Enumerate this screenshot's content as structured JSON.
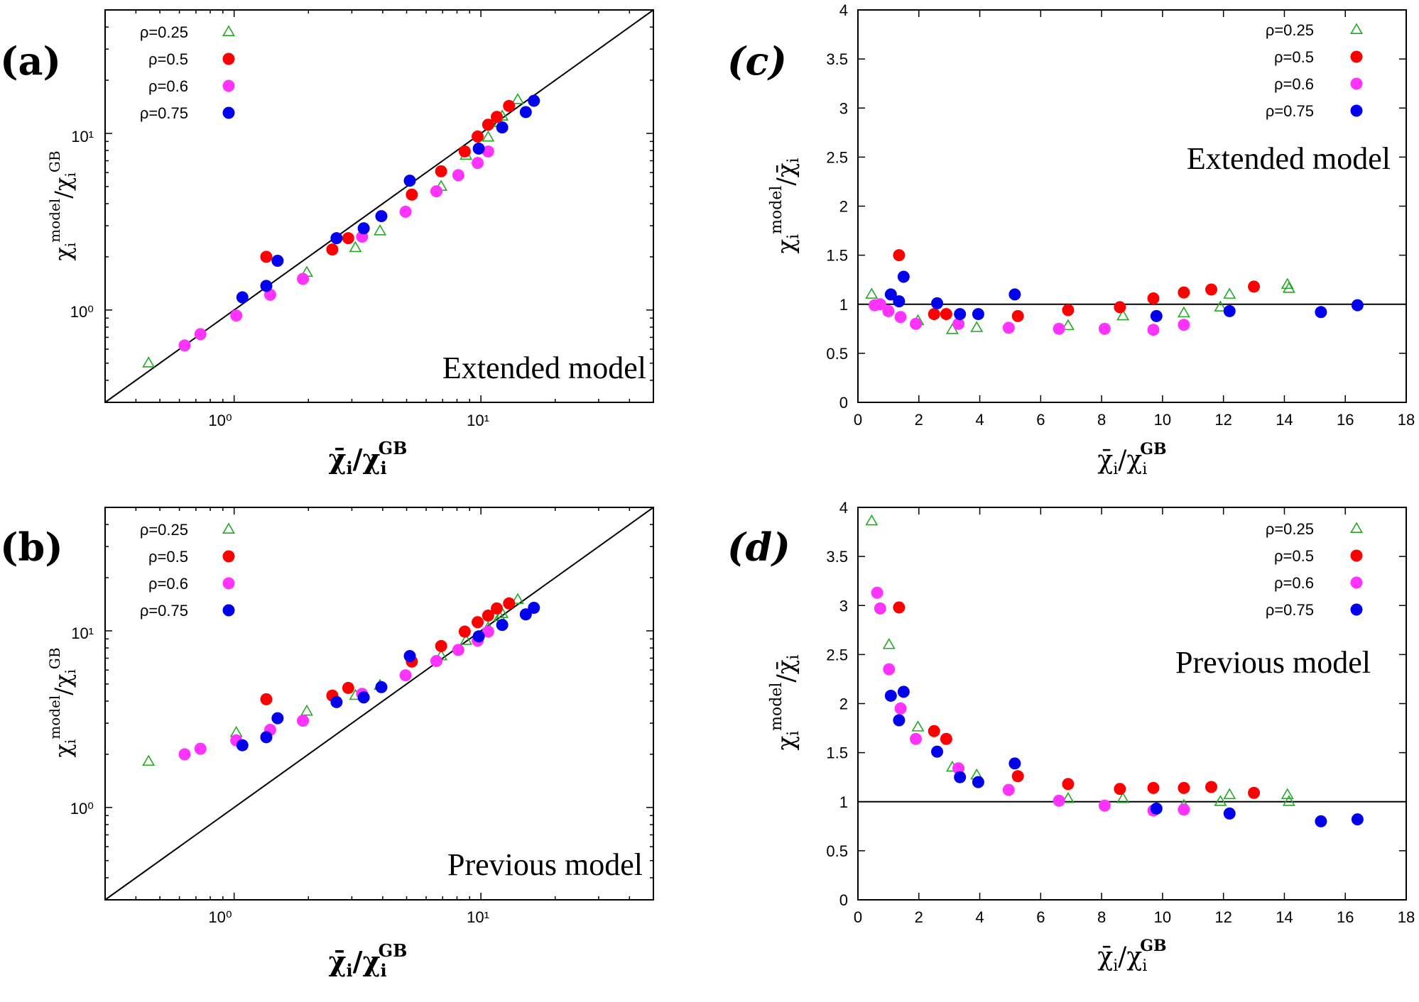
{
  "colors": {
    "rho_0.25": "#22aa22",
    "rho_0.5": "#ff0000",
    "rho_0.6": "#ff33ff",
    "rho_0.75": "#0000ee"
  },
  "legend": [
    {
      "label": "ρ=0.25",
      "marker": "triangle-open",
      "color": "#22aa22"
    },
    {
      "label": "ρ=0.5",
      "marker": "circle",
      "color": "#ff0000"
    },
    {
      "label": "ρ=0.6",
      "marker": "circle",
      "color": "#ff33ff"
    },
    {
      "label": "ρ=0.75",
      "marker": "circle",
      "color": "#0000ee"
    }
  ],
  "axis_text": {
    "log_xlabel": "χ̄ᵢ/χᵢ^GB",
    "log_ylabel": "χᵢ^model/χᵢ^GB",
    "lin_xlabel": "χ̄ᵢ/χᵢ^GB",
    "lin_ylabel": "χᵢ^model/χ̄ᵢ",
    "x_main": "χ̄",
    "x_sub": "i",
    "x_sep": "/χ",
    "x_sup": "GB",
    "y_log_main": "χ",
    "y_log_sub": "i",
    "y_log_sup_model": "model",
    "y_log_sep": "/χ",
    "y_log_sup_gb": "GB",
    "y_lin_main": "χ",
    "y_lin_sub": "i",
    "y_lin_sup": "model",
    "y_lin_sep": "/χ̄",
    "y_lin_sub2": "i"
  },
  "panels": {
    "a": {
      "label": "(a)",
      "model": "Extended model"
    },
    "b": {
      "label": "(b)",
      "model": "Previous model"
    },
    "c": {
      "label": "(c)",
      "model": "Extended model"
    },
    "d": {
      "label": "(d)",
      "model": "Previous model"
    }
  },
  "log_ticks": {
    "x": [
      "10⁰",
      "10¹"
    ],
    "y": [
      "10⁰",
      "10¹"
    ]
  },
  "chart_data": [
    {
      "panel": "a",
      "type": "scatter",
      "title": "",
      "xscale": "log",
      "yscale": "log",
      "xlim": [
        0.3,
        50
      ],
      "ylim": [
        0.3,
        50
      ],
      "reference_line": "y = x",
      "annotation": "Extended model",
      "series": [
        {
          "name": "ρ=0.25",
          "marker": "triangle-open",
          "color": "#22aa22",
          "points": [
            [
              0.45,
              0.5
            ],
            [
              1.97,
              1.63
            ],
            [
              3.1,
              2.25
            ],
            [
              3.9,
              2.8
            ],
            [
              6.9,
              5.0
            ],
            [
              8.7,
              7.5
            ],
            [
              10.7,
              9.5
            ],
            [
              11.9,
              11.5
            ],
            [
              12.2,
              12.5
            ],
            [
              14.1,
              15.5
            ]
          ]
        },
        {
          "name": "ρ=0.5",
          "marker": "circle",
          "color": "#ff0000",
          "points": [
            [
              1.35,
              2.0
            ],
            [
              2.5,
              2.2
            ],
            [
              2.9,
              2.55
            ],
            [
              5.25,
              4.5
            ],
            [
              6.9,
              6.1
            ],
            [
              8.6,
              7.9
            ],
            [
              9.7,
              9.6
            ],
            [
              10.7,
              11.2
            ],
            [
              11.6,
              12.4
            ],
            [
              13.0,
              14.3
            ]
          ]
        },
        {
          "name": "ρ=0.6",
          "marker": "circle",
          "color": "#ff33ff",
          "points": [
            [
              0.63,
              0.63
            ],
            [
              0.73,
              0.73
            ],
            [
              1.02,
              0.93
            ],
            [
              1.4,
              1.22
            ],
            [
              1.9,
              1.5
            ],
            [
              3.3,
              2.6
            ],
            [
              4.95,
              3.6
            ],
            [
              6.6,
              4.7
            ],
            [
              8.1,
              5.8
            ],
            [
              9.7,
              6.8
            ],
            [
              10.7,
              7.9
            ]
          ]
        },
        {
          "name": "ρ=0.75",
          "marker": "circle",
          "color": "#0000ee",
          "points": [
            [
              1.08,
              1.18
            ],
            [
              1.35,
              1.37
            ],
            [
              1.5,
              1.9
            ],
            [
              2.6,
              2.55
            ],
            [
              3.35,
              2.9
            ],
            [
              3.95,
              3.4
            ],
            [
              5.15,
              5.4
            ],
            [
              9.8,
              8.2
            ],
            [
              12.2,
              10.8
            ],
            [
              15.2,
              13.2
            ],
            [
              16.4,
              15.3
            ]
          ]
        }
      ]
    },
    {
      "panel": "b",
      "type": "scatter",
      "title": "",
      "xscale": "log",
      "yscale": "log",
      "xlim": [
        0.3,
        50
      ],
      "ylim": [
        0.3,
        50
      ],
      "reference_line": "y = x",
      "annotation": "Previous model",
      "series": [
        {
          "name": "ρ=0.25",
          "marker": "triangle-open",
          "color": "#22aa22",
          "points": [
            [
              0.45,
              1.82
            ],
            [
              1.02,
              2.65
            ],
            [
              1.97,
              3.5
            ],
            [
              3.1,
              4.3
            ],
            [
              3.9,
              4.9
            ],
            [
              6.9,
              7.2
            ],
            [
              8.7,
              8.8
            ],
            [
              10.7,
              10.4
            ],
            [
              11.9,
              12.0
            ],
            [
              12.2,
              12.5
            ],
            [
              14.1,
              15.0
            ]
          ]
        },
        {
          "name": "ρ=0.5",
          "marker": "circle",
          "color": "#ff0000",
          "points": [
            [
              1.35,
              4.1
            ],
            [
              2.5,
              4.3
            ],
            [
              2.9,
              4.75
            ],
            [
              5.25,
              6.7
            ],
            [
              6.9,
              8.2
            ],
            [
              8.6,
              9.9
            ],
            [
              9.7,
              11.2
            ],
            [
              10.7,
              12.2
            ],
            [
              11.6,
              13.4
            ],
            [
              13.0,
              14.3
            ]
          ]
        },
        {
          "name": "ρ=0.6",
          "marker": "circle",
          "color": "#ff33ff",
          "points": [
            [
              0.63,
              2.0
            ],
            [
              0.73,
              2.15
            ],
            [
              1.02,
              2.4
            ],
            [
              1.4,
              2.75
            ],
            [
              1.9,
              3.1
            ],
            [
              3.3,
              4.4
            ],
            [
              4.95,
              5.6
            ],
            [
              6.6,
              6.75
            ],
            [
              8.1,
              7.8
            ],
            [
              9.7,
              8.8
            ],
            [
              10.7,
              9.9
            ]
          ]
        },
        {
          "name": "ρ=0.75",
          "marker": "circle",
          "color": "#0000ee",
          "points": [
            [
              1.08,
              2.25
            ],
            [
              1.35,
              2.5
            ],
            [
              1.5,
              3.2
            ],
            [
              2.6,
              3.95
            ],
            [
              3.35,
              4.2
            ],
            [
              3.95,
              4.8
            ],
            [
              5.15,
              7.2
            ],
            [
              9.8,
              9.3
            ],
            [
              12.2,
              10.8
            ],
            [
              15.2,
              12.4
            ],
            [
              16.4,
              13.5
            ]
          ]
        }
      ]
    },
    {
      "panel": "c",
      "type": "scatter",
      "title": "",
      "xscale": "linear",
      "yscale": "linear",
      "xlim": [
        0,
        18
      ],
      "ylim": [
        0,
        4
      ],
      "xticks": [
        0,
        2,
        4,
        6,
        8,
        10,
        12,
        14,
        16,
        18
      ],
      "yticks": [
        0,
        0.5,
        1,
        1.5,
        2,
        2.5,
        3,
        3.5,
        4
      ],
      "reference_line": "y = 1",
      "annotation": "Extended model",
      "series": [
        {
          "name": "ρ=0.25",
          "marker": "triangle-open",
          "color": "#22aa22",
          "points": [
            [
              0.45,
              1.1
            ],
            [
              1.97,
              0.83
            ],
            [
              3.1,
              0.74
            ],
            [
              3.9,
              0.76
            ],
            [
              6.9,
              0.78
            ],
            [
              8.7,
              0.88
            ],
            [
              10.7,
              0.91
            ],
            [
              11.9,
              0.97
            ],
            [
              12.2,
              1.1
            ],
            [
              14.1,
              1.2
            ],
            [
              14.15,
              1.16
            ]
          ]
        },
        {
          "name": "ρ=0.5",
          "marker": "circle",
          "color": "#ff0000",
          "points": [
            [
              1.35,
              1.5
            ],
            [
              2.5,
              0.9
            ],
            [
              2.9,
              0.9
            ],
            [
              5.25,
              0.88
            ],
            [
              6.9,
              0.94
            ],
            [
              8.6,
              0.97
            ],
            [
              9.7,
              1.06
            ],
            [
              10.7,
              1.12
            ],
            [
              11.6,
              1.15
            ],
            [
              13.0,
              1.18
            ]
          ]
        },
        {
          "name": "ρ=0.6",
          "marker": "circle",
          "color": "#ff33ff",
          "points": [
            [
              0.55,
              0.99
            ],
            [
              0.73,
              1.0
            ],
            [
              1.0,
              0.93
            ],
            [
              1.4,
              0.87
            ],
            [
              1.9,
              0.8
            ],
            [
              3.3,
              0.8
            ],
            [
              4.95,
              0.76
            ],
            [
              6.6,
              0.75
            ],
            [
              8.1,
              0.75
            ],
            [
              9.7,
              0.74
            ],
            [
              10.7,
              0.79
            ]
          ]
        },
        {
          "name": "ρ=0.75",
          "marker": "circle",
          "color": "#0000ee",
          "points": [
            [
              1.08,
              1.1
            ],
            [
              1.35,
              1.03
            ],
            [
              1.5,
              1.28
            ],
            [
              2.6,
              1.01
            ],
            [
              3.35,
              0.9
            ],
            [
              3.95,
              0.9
            ],
            [
              5.15,
              1.1
            ],
            [
              9.8,
              0.88
            ],
            [
              12.2,
              0.93
            ],
            [
              15.2,
              0.92
            ],
            [
              16.4,
              0.99
            ]
          ]
        }
      ]
    },
    {
      "panel": "d",
      "type": "scatter",
      "title": "",
      "xscale": "linear",
      "yscale": "linear",
      "xlim": [
        0,
        18
      ],
      "ylim": [
        0,
        4
      ],
      "xticks": [
        0,
        2,
        4,
        6,
        8,
        10,
        12,
        14,
        16,
        18
      ],
      "yticks": [
        0,
        0.5,
        1,
        1.5,
        2,
        2.5,
        3,
        3.5,
        4
      ],
      "reference_line": "y = 1",
      "annotation": "Previous model",
      "series": [
        {
          "name": "ρ=0.25",
          "marker": "triangle-open",
          "color": "#22aa22",
          "points": [
            [
              0.45,
              3.86
            ],
            [
              1.02,
              2.6
            ],
            [
              1.97,
              1.76
            ],
            [
              3.1,
              1.35
            ],
            [
              3.9,
              1.27
            ],
            [
              6.9,
              1.03
            ],
            [
              8.7,
              1.03
            ],
            [
              10.7,
              0.96
            ],
            [
              11.9,
              1.0
            ],
            [
              12.2,
              1.07
            ],
            [
              14.1,
              1.07
            ],
            [
              14.15,
              1.0
            ]
          ]
        },
        {
          "name": "ρ=0.5",
          "marker": "circle",
          "color": "#ff0000",
          "points": [
            [
              1.35,
              2.98
            ],
            [
              2.5,
              1.72
            ],
            [
              2.9,
              1.64
            ],
            [
              5.25,
              1.26
            ],
            [
              6.9,
              1.18
            ],
            [
              8.6,
              1.13
            ],
            [
              9.7,
              1.14
            ],
            [
              10.7,
              1.14
            ],
            [
              11.6,
              1.15
            ],
            [
              13.0,
              1.09
            ]
          ]
        },
        {
          "name": "ρ=0.6",
          "marker": "circle",
          "color": "#ff33ff",
          "points": [
            [
              0.63,
              3.13
            ],
            [
              0.73,
              2.97
            ],
            [
              1.02,
              2.35
            ],
            [
              1.4,
              1.95
            ],
            [
              1.9,
              1.64
            ],
            [
              3.3,
              1.34
            ],
            [
              4.95,
              1.12
            ],
            [
              6.6,
              1.01
            ],
            [
              8.1,
              0.96
            ],
            [
              9.7,
              0.91
            ],
            [
              10.7,
              0.92
            ]
          ]
        },
        {
          "name": "ρ=0.75",
          "marker": "circle",
          "color": "#0000ee",
          "points": [
            [
              1.08,
              2.08
            ],
            [
              1.35,
              1.83
            ],
            [
              1.5,
              2.12
            ],
            [
              2.6,
              1.51
            ],
            [
              3.35,
              1.25
            ],
            [
              3.95,
              1.2
            ],
            [
              5.15,
              1.39
            ],
            [
              9.8,
              0.93
            ],
            [
              12.2,
              0.88
            ],
            [
              15.2,
              0.8
            ],
            [
              16.4,
              0.82
            ]
          ]
        }
      ]
    }
  ]
}
